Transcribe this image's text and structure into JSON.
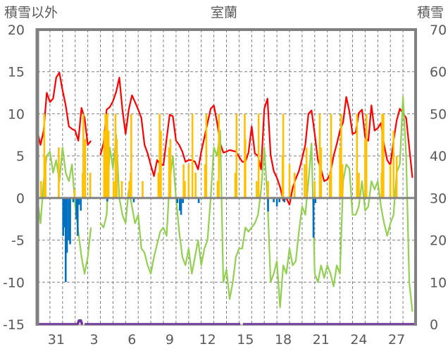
{
  "chart_data": {
    "type": "line",
    "title": "室蘭",
    "ylabel_left": "積雪以外",
    "ylabel_right": "積雪",
    "ylim_left": [
      -15,
      20
    ],
    "ylim_right": [
      0,
      70
    ],
    "yticks_left": [
      "20",
      "15",
      "10",
      "5",
      "0",
      "-5",
      "-10",
      "-15"
    ],
    "yticks_right": [
      "70",
      "60",
      "50",
      "40",
      "30",
      "20",
      "10",
      "0"
    ],
    "x_unit": "days from start of Dec 30 (30 days shown)",
    "xlim": [
      0,
      30
    ],
    "xticks": [
      {
        "label": "31",
        "day": 1.5
      },
      {
        "label": "3",
        "day": 4.5
      },
      {
        "label": "6",
        "day": 7.5
      },
      {
        "label": "9",
        "day": 10.5
      },
      {
        "label": "12",
        "day": 13.5
      },
      {
        "label": "15",
        "day": 16.5
      },
      {
        "label": "18",
        "day": 19.5
      },
      {
        "label": "21",
        "day": 22.5
      },
      {
        "label": "24",
        "day": 25.5
      },
      {
        "label": "27",
        "day": 28.5
      }
    ],
    "grid": true,
    "colors": {
      "red": "#ff0000",
      "green": "#92d050",
      "yellow": "#ffc000",
      "blue": "#0070c0",
      "purple": "#7030a0",
      "axis": "#808080"
    },
    "series": [
      {
        "name": "red-line",
        "axis": "left",
        "type": "line",
        "step_days": 0.25,
        "values": [
          8.0,
          6.3,
          8,
          12.5,
          11.4,
          11.8,
          14.3,
          14.9,
          12.8,
          11,
          8.5,
          8.2,
          8,
          6.8,
          10.7,
          9.5,
          6.3,
          6.8,
          null,
          null,
          5.1,
          6.5,
          10.5,
          10.8,
          11.5,
          12.6,
          14.3,
          10.5,
          7.6,
          10.5,
          12.2,
          11.4,
          10.5,
          9.5,
          6.3,
          5.3,
          3.9,
          2.6,
          4.5,
          4.0,
          3.9,
          7.0,
          9.9,
          9.7,
          6.8,
          6.3,
          5.5,
          4.3,
          4.5,
          4.5,
          4.3,
          3.4,
          5.5,
          7.2,
          8.9,
          10.6,
          11.0,
          9.0,
          6.5,
          5.4,
          5.5,
          5.7,
          5.6,
          5.5,
          4.9,
          4.3,
          4.3,
          5.4,
          8.5,
          5.3,
          5.0,
          3.4,
          10.6,
          11.8,
          5.1,
          3.2,
          2.4,
          1.3,
          -0.3,
          0,
          -0.8,
          1.2,
          2.3,
          3.2,
          4.7,
          6.3,
          10.0,
          10.4,
          7.6,
          4.5,
          3.4,
          2.0,
          2.2,
          3.0,
          5.0,
          6.4,
          8.0,
          9.0,
          12.0,
          10.3,
          7.6,
          7.8,
          10.1,
          10.5,
          7.2,
          6.8,
          11.0,
          8.0,
          8.3,
          8.9,
          6.3,
          4.5,
          3.9,
          6.8,
          9.2,
          10.6,
          10.1,
          9.5,
          6.0,
          2.4
        ]
      },
      {
        "name": "green-line",
        "axis": "left",
        "type": "line",
        "step_days": 0.25,
        "values": [
          0,
          -3,
          2,
          5,
          5.5,
          3,
          4.5,
          2,
          6,
          3,
          2,
          4,
          -1,
          -4,
          -7,
          -9,
          -7,
          -3.5,
          null,
          null,
          -3,
          -3.5,
          -2,
          6,
          3.5,
          7.5,
          0,
          -2,
          -3,
          1,
          -1,
          -3,
          -2,
          -6,
          -6.5,
          -8,
          -9,
          -7,
          -5.5,
          -4,
          -3.5,
          -4.5,
          2,
          5,
          0,
          -4,
          -7,
          -8,
          -6,
          -9,
          -7,
          -5,
          -8,
          -6,
          -5,
          0,
          6,
          5,
          8,
          -10,
          -8.5,
          -12,
          -10,
          -7,
          -6,
          -6,
          -3.5,
          -4,
          -3.5,
          -3,
          -2,
          1,
          6,
          0,
          -10,
          -9,
          -7.5,
          -13,
          -8,
          -9,
          -6,
          -8,
          -7.5,
          -4,
          -1,
          -2,
          2,
          6.5,
          -9,
          -10,
          -8,
          -9.5,
          -8,
          -9,
          -10.5,
          -8,
          -9,
          2,
          4,
          3.5,
          -2,
          -2,
          -1,
          2,
          -1.5,
          -1,
          2,
          1,
          2,
          -1,
          -3,
          -4.5,
          -3,
          -2,
          3,
          4,
          12,
          5,
          -10,
          -13.5
        ]
      },
      {
        "name": "yellow-bars",
        "axis": "left",
        "type": "bar",
        "points": [
          [
            0.3,
            2
          ],
          [
            0.55,
            10
          ],
          [
            0.65,
            5
          ],
          [
            1.7,
            6
          ],
          [
            2.95,
            1
          ],
          [
            3.6,
            3
          ],
          [
            3.65,
            10
          ],
          [
            3.8,
            7
          ],
          [
            4.2,
            3
          ],
          [
            5.3,
            8
          ],
          [
            5.4,
            10
          ],
          [
            5.55,
            10
          ],
          [
            5.65,
            8
          ],
          [
            6.05,
            2
          ],
          [
            6.2,
            10
          ],
          [
            6.3,
            7
          ],
          [
            6.7,
            2
          ],
          [
            7.3,
            2
          ],
          [
            7.4,
            3
          ],
          [
            7.45,
            10
          ],
          [
            8.35,
            2
          ],
          [
            9.6,
            3
          ],
          [
            9.7,
            10
          ],
          [
            9.8,
            8
          ],
          [
            10.45,
            6
          ],
          [
            10.55,
            7
          ],
          [
            11.6,
            4
          ],
          [
            11.7,
            2
          ],
          [
            12.0,
            4
          ],
          [
            12.3,
            10
          ],
          [
            12.55,
            3
          ],
          [
            13.3,
            4
          ],
          [
            13.4,
            10
          ],
          [
            14.3,
            2
          ],
          [
            14.4,
            10
          ],
          [
            15.7,
            3
          ],
          [
            15.8,
            10
          ],
          [
            16.45,
            10
          ],
          [
            16.5,
            7
          ],
          [
            17.4,
            2
          ],
          [
            17.55,
            10
          ],
          [
            18.3,
            2
          ],
          [
            19.45,
            5
          ],
          [
            19.5,
            10
          ],
          [
            20.0,
            4
          ],
          [
            20.4,
            3
          ],
          [
            21.2,
            4
          ],
          [
            21.35,
            6
          ],
          [
            22.0,
            2
          ],
          [
            22.4,
            10
          ],
          [
            22.5,
            6
          ],
          [
            23.2,
            3
          ],
          [
            23.3,
            10
          ],
          [
            24.0,
            6
          ],
          [
            24.1,
            10
          ],
          [
            24.2,
            4
          ],
          [
            25.35,
            10
          ],
          [
            25.5,
            3
          ],
          [
            26.0,
            7
          ],
          [
            26.1,
            10
          ],
          [
            27.3,
            3
          ],
          [
            27.35,
            10
          ],
          [
            27.45,
            10
          ],
          [
            28.0,
            4
          ],
          [
            28.25,
            8
          ],
          [
            28.5,
            5
          ]
        ]
      },
      {
        "name": "blue-bars",
        "axis": "left",
        "type": "bar",
        "points": [
          [
            2.05,
            -4.5
          ],
          [
            2.15,
            -3.5
          ],
          [
            2.25,
            -10
          ],
          [
            2.35,
            -6.5
          ],
          [
            2.5,
            -5
          ],
          [
            2.6,
            -5.5
          ],
          [
            2.85,
            -0.5
          ],
          [
            3.1,
            -2.5
          ],
          [
            3.2,
            -4.5
          ],
          [
            3.3,
            -0.8
          ],
          [
            3.45,
            -1.5
          ],
          [
            5.55,
            -0.4
          ],
          [
            7.65,
            -0.5
          ],
          [
            11.1,
            -0.6
          ],
          [
            11.3,
            -1.5
          ],
          [
            11.4,
            -2
          ],
          [
            11.55,
            -0.6
          ],
          [
            12.8,
            -0.6
          ],
          [
            18.3,
            -1.6
          ],
          [
            18.75,
            -0.5
          ],
          [
            19.0,
            -1.0
          ],
          [
            19.2,
            -0.5
          ],
          [
            19.6,
            -0.5
          ],
          [
            21.9,
            -4.7
          ],
          [
            22.05,
            -0.6
          ]
        ]
      },
      {
        "name": "snow-depth-line",
        "axis": "right",
        "type": "line",
        "points": [
          [
            0,
            0
          ],
          [
            3.2,
            0
          ],
          [
            3.3,
            0.9
          ],
          [
            3.45,
            0.9
          ],
          [
            3.55,
            0
          ],
          [
            3.6,
            0
          ],
          [
            null,
            null
          ],
          [
            3.75,
            0
          ],
          [
            16.1,
            0
          ],
          [
            null,
            null
          ],
          [
            16.3,
            0
          ],
          [
            30,
            0
          ]
        ]
      }
    ]
  }
}
